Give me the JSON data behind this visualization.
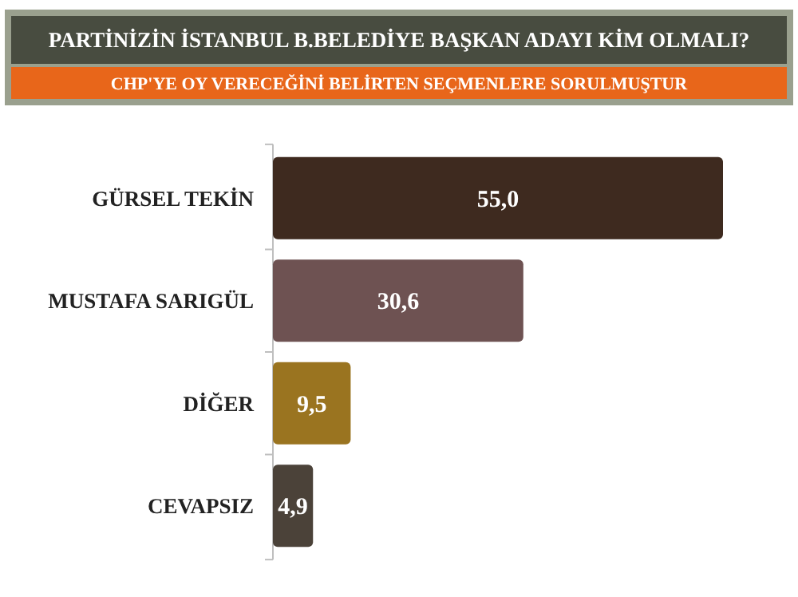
{
  "chart_data": {
    "type": "bar",
    "orientation": "horizontal",
    "title": "PARTİNİZİN İSTANBUL B.BELEDİYE BAŞKAN ADAYI KİM OLMALI?",
    "subtitle": "CHP'YE OY VERECEĞİNİ BELİRTEN SEÇMENLERE SORULMUŞTUR",
    "categories": [
      "GÜRSEL TEKİN",
      "MUSTAFA SARIGÜL",
      "DİĞER",
      "CEVAPSIZ"
    ],
    "values": [
      55.0,
      30.6,
      9.5,
      4.9
    ],
    "value_labels": [
      "55,0",
      "30,6",
      "9,5",
      "4,9"
    ],
    "colors": [
      "#3e2a1f",
      "#6e5252",
      "#9a7420",
      "#4b4239"
    ],
    "tick_labels": "y"
  }
}
